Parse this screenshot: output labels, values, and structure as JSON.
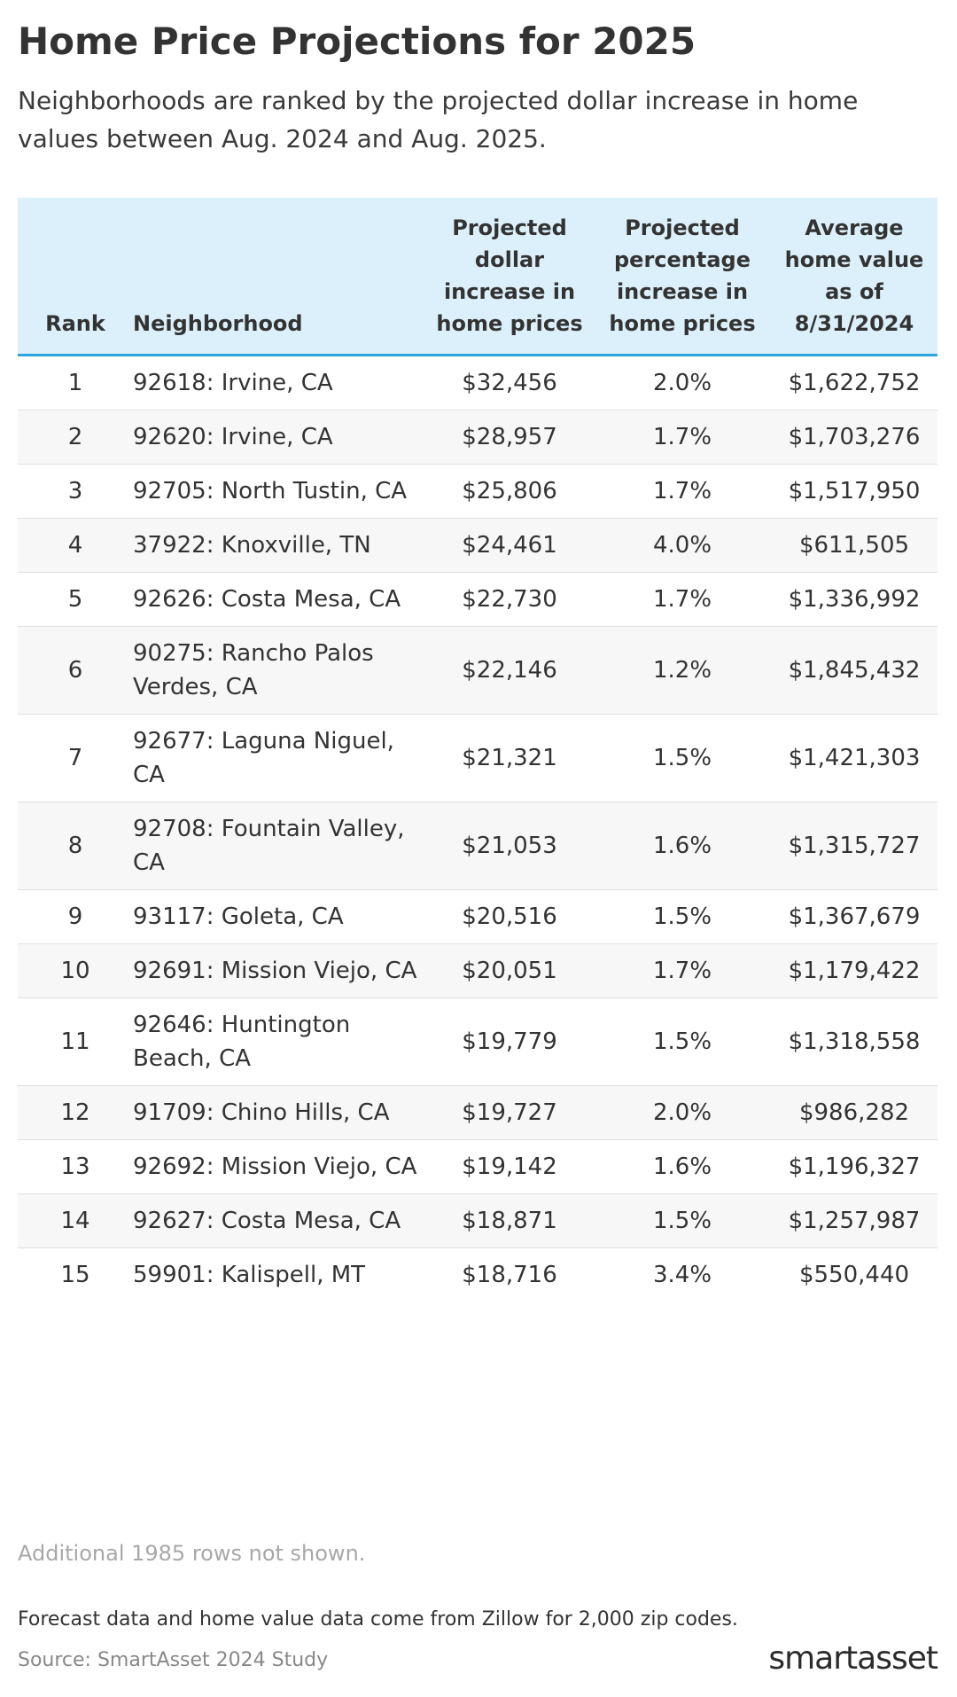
{
  "header": {
    "title": "Home Price Projections for 2025",
    "subtitle": "Neighborhoods are ranked by the projected dollar increase in home values between Aug. 2024 and Aug. 2025."
  },
  "table": {
    "columns": [
      "Rank",
      "Neighborhood",
      "Projected dollar increase in home prices",
      "Projected percentage increase in home prices",
      "Average home value as of 8/31/2024"
    ],
    "rows": [
      [
        "1",
        "92618: Irvine, CA",
        "$32,456",
        "2.0%",
        "$1,622,752"
      ],
      [
        "2",
        "92620: Irvine, CA",
        "$28,957",
        "1.7%",
        "$1,703,276"
      ],
      [
        "3",
        "92705: North Tustin, CA",
        "$25,806",
        "1.7%",
        "$1,517,950"
      ],
      [
        "4",
        "37922: Knoxville, TN",
        "$24,461",
        "4.0%",
        "$611,505"
      ],
      [
        "5",
        "92626: Costa Mesa, CA",
        "$22,730",
        "1.7%",
        "$1,336,992"
      ],
      [
        "6",
        "90275: Rancho Palos Verdes, CA",
        "$22,146",
        "1.2%",
        "$1,845,432"
      ],
      [
        "7",
        "92677: Laguna Niguel, CA",
        "$21,321",
        "1.5%",
        "$1,421,303"
      ],
      [
        "8",
        "92708: Fountain Valley, CA",
        "$21,053",
        "1.6%",
        "$1,315,727"
      ],
      [
        "9",
        "93117: Goleta, CA",
        "$20,516",
        "1.5%",
        "$1,367,679"
      ],
      [
        "10",
        "92691: Mission Viejo, CA",
        "$20,051",
        "1.7%",
        "$1,179,422"
      ],
      [
        "11",
        "92646: Huntington Beach, CA",
        "$19,779",
        "1.5%",
        "$1,318,558"
      ],
      [
        "12",
        "91709: Chino Hills, CA",
        "$19,727",
        "2.0%",
        "$986,282"
      ],
      [
        "13",
        "92692: Mission Viejo, CA",
        "$19,142",
        "1.6%",
        "$1,196,327"
      ],
      [
        "14",
        "92627: Costa Mesa, CA",
        "$18,871",
        "1.5%",
        "$1,257,987"
      ],
      [
        "15",
        "59901: Kalispell, MT",
        "$18,716",
        "3.4%",
        "$550,440"
      ]
    ],
    "note": "Additional 1985 rows not shown."
  },
  "footer": {
    "footnote": "Forecast data and home value data come from Zillow for 2,000 zip codes.",
    "source": "Source: SmartAsset 2024 Study",
    "logo": "smartasset"
  }
}
